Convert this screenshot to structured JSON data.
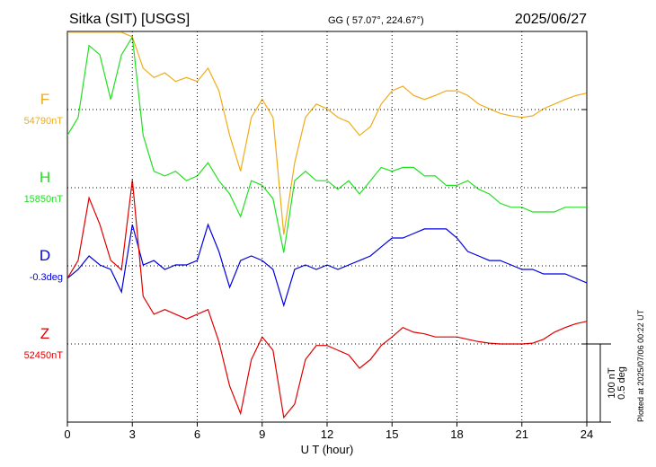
{
  "chart_data": {
    "type": "line",
    "title": "Sitka (SIT)  [USGS]",
    "subtitle": "GG ( 57.07°, 224.67°)",
    "date": "2025/06/27",
    "note": "Plotted at 2025/07/06 00:22 UT",
    "xlabel": "U T (hour)",
    "xlim": [
      0,
      24
    ],
    "xticks": [
      0,
      3,
      6,
      9,
      12,
      15,
      18,
      21,
      24
    ],
    "grid": true,
    "scale_bar": [
      {
        "value": 100,
        "label": "100 nT"
      },
      {
        "value": 0.5,
        "label": "0.5 deg"
      }
    ],
    "x": [
      0,
      0.5,
      1,
      1.5,
      2,
      2.5,
      3,
      3.5,
      4,
      4.5,
      5,
      5.5,
      6,
      6.5,
      7,
      7.5,
      8,
      8.5,
      9,
      9.5,
      10,
      10.5,
      11,
      11.5,
      12,
      12.5,
      13,
      13.5,
      14,
      14.5,
      15,
      15.5,
      16,
      16.5,
      17,
      17.5,
      18,
      18.5,
      19,
      19.5,
      20,
      20.5,
      21,
      21.5,
      22,
      22.5,
      23,
      23.5,
      24
    ],
    "series": [
      {
        "name": "F",
        "color": "#f0ac1a",
        "baseline": {
          "value": 54790,
          "label": "54790nT"
        },
        "values": [
          54889,
          54889,
          54889,
          54889,
          54889,
          54889,
          54883,
          54843,
          54831,
          54837,
          54826,
          54831,
          54826,
          54843,
          54814,
          54757,
          54711,
          54780,
          54803,
          54780,
          54630,
          54722,
          54780,
          54797,
          54791,
          54780,
          54774,
          54757,
          54768,
          54797,
          54814,
          54820,
          54808,
          54803,
          54808,
          54814,
          54814,
          54808,
          54797,
          54791,
          54785,
          54782,
          54780,
          54782,
          54791,
          54797,
          54803,
          54808,
          54811
        ]
      },
      {
        "name": "H",
        "color": "#22e022",
        "baseline": {
          "value": 15850,
          "label": "15850nT"
        },
        "values": [
          15917,
          15940,
          16032,
          16020,
          15963,
          16020,
          16043,
          15917,
          15871,
          15865,
          15871,
          15859,
          15865,
          15882,
          15859,
          15842,
          15813,
          15859,
          15853,
          15836,
          15767,
          15859,
          15871,
          15859,
          15859,
          15848,
          15859,
          15842,
          15859,
          15876,
          15871,
          15876,
          15876,
          15865,
          15865,
          15853,
          15853,
          15859,
          15848,
          15842,
          15830,
          15825,
          15825,
          15819,
          15819,
          15819,
          15825,
          15825,
          15825
        ]
      },
      {
        "name": "D",
        "color": "#0000e0",
        "baseline": {
          "value": -0.3,
          "label": "-0.3deg"
        },
        "values": [
          -0.38,
          -0.323,
          -0.237,
          -0.294,
          -0.323,
          -0.467,
          -0.036,
          -0.294,
          -0.266,
          -0.323,
          -0.294,
          -0.294,
          -0.266,
          -0.036,
          -0.208,
          -0.438,
          -0.266,
          -0.237,
          -0.266,
          -0.323,
          -0.553,
          -0.323,
          -0.294,
          -0.323,
          -0.294,
          -0.323,
          -0.294,
          -0.266,
          -0.237,
          -0.179,
          -0.122,
          -0.122,
          -0.093,
          -0.064,
          -0.064,
          -0.064,
          -0.122,
          -0.208,
          -0.237,
          -0.266,
          -0.266,
          -0.294,
          -0.323,
          -0.323,
          -0.352,
          -0.352,
          -0.352,
          -0.38,
          -0.409
        ]
      },
      {
        "name": "Z",
        "color": "#e00000",
        "baseline": {
          "value": 52450,
          "label": "52450nT"
        },
        "values": [
          52534,
          52557,
          52637,
          52603,
          52557,
          52545,
          52660,
          52511,
          52488,
          52494,
          52488,
          52482,
          52488,
          52494,
          52453,
          52396,
          52361,
          52430,
          52459,
          52442,
          52356,
          52373,
          52430,
          52448,
          52448,
          52442,
          52436,
          52419,
          52430,
          52448,
          52459,
          52471,
          52465,
          52463,
          52459,
          52459,
          52459,
          52456,
          52453,
          52451,
          52450,
          52450,
          52450,
          52451,
          52456,
          52465,
          52471,
          52476,
          52479
        ]
      }
    ]
  }
}
